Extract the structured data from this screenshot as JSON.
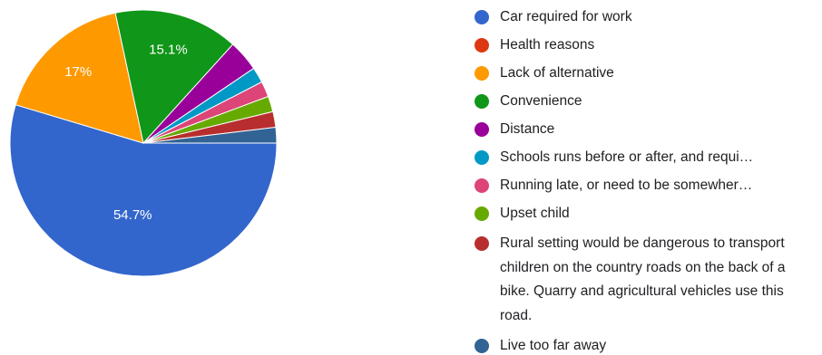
{
  "chart_data": {
    "type": "pie",
    "title": "",
    "legend_position": "right",
    "slices": [
      {
        "label": "Car required for work",
        "value": 54.7,
        "color": "#3366cc",
        "data_label": "54.7%"
      },
      {
        "label": "Health reasons",
        "value": 0,
        "color": "#dc3912",
        "data_label": ""
      },
      {
        "label": "Lack of alternative",
        "value": 17,
        "color": "#ff9900",
        "data_label": "17%"
      },
      {
        "label": "Convenience",
        "value": 15.1,
        "color": "#109618",
        "data_label": "15.1%"
      },
      {
        "label": "Distance",
        "value": 3.8,
        "color": "#990099",
        "data_label": ""
      },
      {
        "label": "Schools runs before or after, and requi…",
        "value": 1.9,
        "color": "#0099c6",
        "data_label": ""
      },
      {
        "label": "Running late, or need to be somewher…",
        "value": 1.9,
        "color": "#dd4477",
        "data_label": ""
      },
      {
        "label": "Upset child",
        "value": 1.9,
        "color": "#66aa00",
        "data_label": ""
      },
      {
        "label": "Rural setting would be dangerous to transport children on the country roads on the back of a bike. Quarry and agricultural vehicles use this road.",
        "value": 1.9,
        "color": "#b82e2e",
        "data_label": ""
      },
      {
        "label": "Live too far away",
        "value": 1.9,
        "color": "#316395",
        "data_label": ""
      }
    ]
  }
}
